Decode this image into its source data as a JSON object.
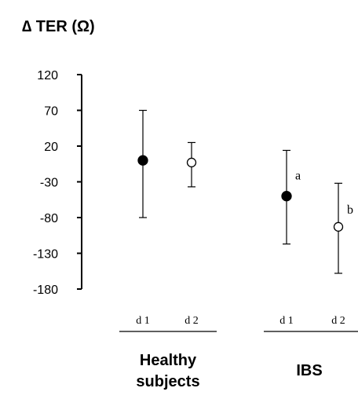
{
  "chart_data": {
    "type": "scatter",
    "ylabel": "∆ TER (Ω)",
    "yticks": [
      120,
      70,
      20,
      -30,
      -80,
      -130,
      -180
    ],
    "ylim": [
      -180,
      120
    ],
    "groups": [
      {
        "label_lines": [
          "Healthy",
          "subjects"
        ],
        "points": [
          {
            "label": "d 1",
            "mean": 0,
            "error_low": -80,
            "error_high": 70,
            "filled": true,
            "annotation": ""
          },
          {
            "label": "d 2",
            "mean": -3,
            "error_low": -37,
            "error_high": 25,
            "filled": false,
            "annotation": ""
          }
        ]
      },
      {
        "label_lines": [
          "IBS"
        ],
        "points": [
          {
            "label": "d 1",
            "mean": -50,
            "error_low": -117,
            "error_high": 14,
            "filled": true,
            "annotation": "a"
          },
          {
            "label": "d 2",
            "mean": -93,
            "error_low": -158,
            "error_high": -32,
            "filled": false,
            "annotation": "b"
          }
        ]
      }
    ],
    "grid": false,
    "legend": "none"
  }
}
